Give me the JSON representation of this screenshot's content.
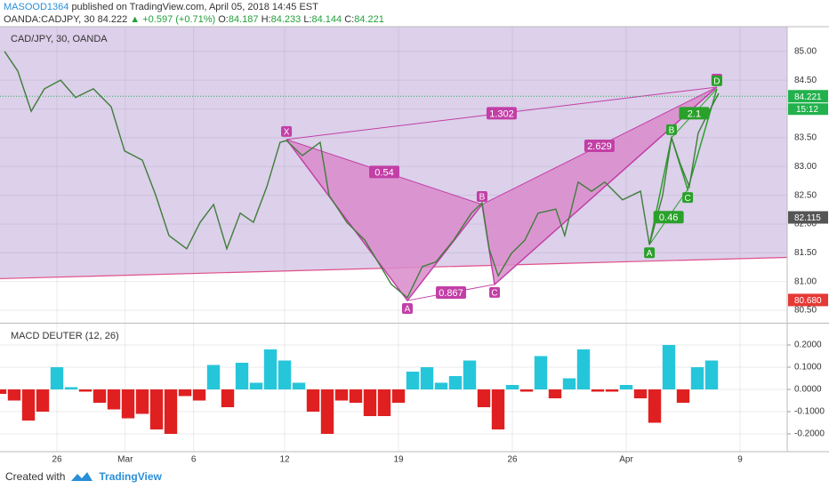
{
  "header": {
    "author": "MASOOD1364",
    "published": "published on TradingView.com, April 05, 2018 14:45 EST",
    "symbol": "OANDA:CADJPY, 30",
    "last": "84.222",
    "change": "▲ +0.597 (+0.71%)",
    "o_label": "O:",
    "o": "84.187",
    "h_label": "H:",
    "h": "84.233",
    "l_label": "L:",
    "l": "84.144",
    "c_label": "C:",
    "c": "84.221"
  },
  "footer": {
    "created": "Created with",
    "brand": "TradingView"
  },
  "chart_data": [
    {
      "type": "line",
      "title": "CAD/JPY, 30, OANDA",
      "color": "#3f7d3a",
      "background": "#dcd0ea",
      "xlim": [
        -2.5,
        32.07
      ],
      "xticks": [
        {
          "value": 0,
          "label": "26"
        },
        {
          "value": 3,
          "label": "Mar"
        },
        {
          "value": 6,
          "label": "6"
        },
        {
          "value": 10,
          "label": "12"
        },
        {
          "value": 15,
          "label": "19"
        },
        {
          "value": 20,
          "label": "26"
        },
        {
          "value": 25,
          "label": "Apr"
        },
        {
          "value": 30,
          "label": "9"
        }
      ],
      "ylim": [
        80.3,
        85.43
      ],
      "yticks": [
        {
          "value": 80.5,
          "label": "80.50"
        },
        {
          "value": 81,
          "label": "81.00"
        },
        {
          "value": 81.5,
          "label": "81.50"
        },
        {
          "value": 82,
          "label": "82.00"
        },
        {
          "value": 82.5,
          "label": "82.50"
        },
        {
          "value": 83,
          "label": "83.00"
        },
        {
          "value": 83.5,
          "label": "83.50"
        },
        {
          "value": 84,
          "label": "84.00"
        },
        {
          "value": 84.5,
          "label": "84.50"
        },
        {
          "value": 85,
          "label": "85.00"
        }
      ],
      "grid": true,
      "x": [
        -2.3,
        -1.72,
        -1.13,
        -0.55,
        0.16,
        0.82,
        1.6,
        2.38,
        2.97,
        3.75,
        4.34,
        4.92,
        5.7,
        6.29,
        6.88,
        7.46,
        8.05,
        8.63,
        9.22,
        9.8,
        10.08,
        10.78,
        11.56,
        11.95,
        12.73,
        13.52,
        14.1,
        14.69,
        15.39,
        16.05,
        16.64,
        17.42,
        18.2,
        18.67,
        18.98,
        19.38,
        19.96,
        20.55,
        21.13,
        21.91,
        22.3,
        22.89,
        23.48,
        24.06,
        24.84,
        25.63,
        26.02,
        26.6,
        26.99,
        27.38,
        27.77,
        28.16,
        28.55,
        29.06
      ],
      "values": [
        85.0,
        84.66,
        83.96,
        84.35,
        84.5,
        84.2,
        84.35,
        84.04,
        83.27,
        83.11,
        82.5,
        81.8,
        81.57,
        82.03,
        82.34,
        81.57,
        82.19,
        82.03,
        82.65,
        83.42,
        83.45,
        83.19,
        83.42,
        82.5,
        82.03,
        81.72,
        81.34,
        80.95,
        80.72,
        81.26,
        81.34,
        81.72,
        82.19,
        82.37,
        81.57,
        81.1,
        81.49,
        81.72,
        82.19,
        82.26,
        81.8,
        82.73,
        82.57,
        82.73,
        82.42,
        82.57,
        81.64,
        82.5,
        83.5,
        83.04,
        82.65,
        83.58,
        83.89,
        84.27
      ],
      "last_price": {
        "value": 84.221,
        "color": "#22b14c"
      },
      "countdown": "15:12",
      "badges": [
        {
          "value": 82.115,
          "color": "#555555"
        },
        {
          "value": 80.68,
          "label": "80.680",
          "color": "#e53935"
        }
      ],
      "trendline": {
        "x": [
          -2.5,
          32.07
        ],
        "y": [
          81.05,
          81.42
        ],
        "color": "#e0508a"
      },
      "patterns": [
        {
          "color": "#c23fa6",
          "fill": "#d98bcb",
          "labels": [
            "X",
            "A",
            "B",
            "C",
            "D"
          ],
          "x": [
            10.08,
            15.39,
            18.67,
            19.22,
            28.98
          ],
          "y": [
            83.47,
            80.67,
            82.34,
            80.95,
            84.38
          ],
          "ratios": [
            {
              "connect": [
                "X",
                "D"
              ],
              "value": 1.302
            },
            {
              "connect": [
                "X",
                "B"
              ],
              "value": 0.54
            },
            {
              "connect": [
                "A",
                "C"
              ],
              "value": 0.867
            },
            {
              "connect": [
                "B",
                "D"
              ],
              "value": 2.629
            }
          ]
        },
        {
          "color": "#2aa12a",
          "fill": null,
          "labels": [
            "A",
            "B",
            "C",
            "D"
          ],
          "x": [
            26.02,
            26.99,
            27.7,
            28.98
          ],
          "y": [
            81.64,
            83.5,
            82.6,
            84.35
          ],
          "ratios": [
            {
              "connect": [
                "A",
                "C"
              ],
              "value": 0.46
            },
            {
              "connect": [
                "B",
                "D"
              ],
              "value": 2.1
            }
          ]
        }
      ]
    },
    {
      "type": "histogram",
      "title": "MACD DEUTER (12, 26)",
      "positive_color": "#26c6da",
      "negative_color": "#e02020",
      "xlim": [
        -2.5,
        32.07
      ],
      "ylim": [
        -0.28,
        0.292
      ],
      "yticks": [
        {
          "value": 0.2,
          "label": "0.2000"
        },
        {
          "value": 0.1,
          "label": "0.1000"
        },
        {
          "value": 0,
          "label": "0.0000"
        },
        {
          "value": -0.1,
          "label": "-0.1000"
        },
        {
          "value": -0.2,
          "label": "-0.2000"
        }
      ],
      "x": [
        -2.5,
        -1.875,
        -1.25,
        -0.625,
        0,
        0.625,
        1.25,
        1.875,
        2.5,
        3.125,
        3.75,
        4.375,
        5,
        5.625,
        6.25,
        6.875,
        7.5,
        8.125,
        8.75,
        9.375,
        10,
        10.625,
        11.25,
        11.875,
        12.5,
        13.125,
        13.75,
        14.375,
        15,
        15.625,
        16.25,
        16.875,
        17.5,
        18.125,
        18.75,
        19.375,
        20,
        20.625,
        21.25,
        21.875,
        22.5,
        23.125,
        23.75,
        24.375,
        25,
        25.625,
        26.25,
        26.875,
        27.5,
        28.125,
        28.75
      ],
      "values": [
        -0.02,
        -0.05,
        -0.14,
        -0.1,
        0.1,
        0.01,
        -0.01,
        -0.06,
        -0.09,
        -0.13,
        -0.11,
        -0.18,
        -0.2,
        -0.03,
        -0.05,
        0.11,
        -0.08,
        0.12,
        0.03,
        0.18,
        0.13,
        0.03,
        -0.1,
        -0.2,
        -0.05,
        -0.06,
        -0.12,
        -0.12,
        -0.06,
        0.08,
        0.1,
        0.03,
        0.06,
        0.13,
        -0.08,
        -0.18,
        0.02,
        -0.01,
        0.15,
        -0.04,
        0.05,
        0.18,
        -0.01,
        -0.01,
        0.02,
        -0.04,
        -0.15,
        0.2,
        -0.06,
        0.1,
        0.13
      ]
    }
  ]
}
